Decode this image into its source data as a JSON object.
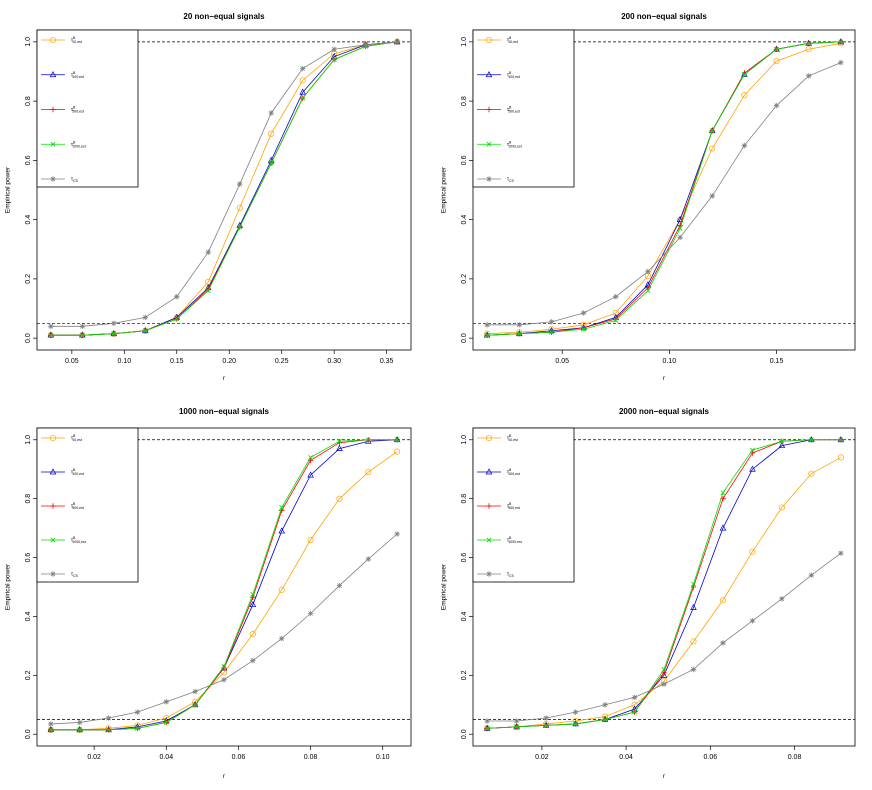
{
  "chart_data": [
    {
      "type": "line",
      "title": "20 non−equal signals",
      "xlabel": "r",
      "ylabel": "Empirical power",
      "xlim": [
        0.03,
        0.36
      ],
      "ylim": [
        0.0,
        1.0
      ],
      "xticks": [
        0.05,
        0.1,
        0.15,
        0.2,
        0.25,
        0.3,
        0.35
      ],
      "xtick_labels": [
        "0.05",
        "0.10",
        "0.15",
        "0.20",
        "0.25",
        "0.30",
        "0.35"
      ],
      "yticks": [
        0.0,
        0.2,
        0.4,
        0.6,
        0.8,
        1.0
      ],
      "ytick_labels": [
        "0.0",
        "0.2",
        "0.4",
        "0.6",
        "0.8",
        "1.0"
      ],
      "hlines": [
        0.05,
        1.0
      ],
      "x": [
        0.03,
        0.06,
        0.09,
        0.12,
        0.15,
        0.18,
        0.21,
        0.24,
        0.27,
        0.3,
        0.33,
        0.36
      ],
      "series": [
        {
          "name": "orange",
          "values": [
            0.01,
            0.01,
            0.015,
            0.025,
            0.07,
            0.19,
            0.44,
            0.69,
            0.87,
            0.96,
            0.99,
            1.0
          ]
        },
        {
          "name": "blue",
          "values": [
            0.01,
            0.01,
            0.015,
            0.025,
            0.07,
            0.17,
            0.38,
            0.6,
            0.83,
            0.95,
            0.99,
            1.0
          ]
        },
        {
          "name": "red",
          "values": [
            0.01,
            0.01,
            0.015,
            0.025,
            0.065,
            0.165,
            0.375,
            0.59,
            0.81,
            0.94,
            0.985,
            1.0
          ]
        },
        {
          "name": "green",
          "values": [
            0.01,
            0.01,
            0.015,
            0.025,
            0.065,
            0.16,
            0.375,
            0.59,
            0.81,
            0.94,
            0.985,
            1.0
          ]
        },
        {
          "name": "gray",
          "values": [
            0.04,
            0.04,
            0.05,
            0.07,
            0.14,
            0.29,
            0.52,
            0.76,
            0.91,
            0.975,
            0.99,
            1.0
          ]
        }
      ]
    },
    {
      "type": "line",
      "title": "200 non−equal signals",
      "xlabel": "r",
      "ylabel": "Empirical power",
      "xlim": [
        0.015,
        0.18
      ],
      "ylim": [
        0.0,
        1.0
      ],
      "xticks": [
        0.05,
        0.1,
        0.15
      ],
      "xtick_labels": [
        "0.05",
        "0.10",
        "0.15"
      ],
      "yticks": [
        0.0,
        0.2,
        0.4,
        0.6,
        0.8,
        1.0
      ],
      "ytick_labels": [
        "0.0",
        "0.2",
        "0.4",
        "0.6",
        "0.8",
        "1.0"
      ],
      "hlines": [
        0.05,
        1.0
      ],
      "x": [
        0.015,
        0.03,
        0.045,
        0.06,
        0.075,
        0.09,
        0.105,
        0.12,
        0.135,
        0.15,
        0.165,
        0.18
      ],
      "series": [
        {
          "name": "orange",
          "values": [
            0.015,
            0.02,
            0.03,
            0.045,
            0.085,
            0.21,
            0.4,
            0.64,
            0.82,
            0.935,
            0.975,
            0.995
          ]
        },
        {
          "name": "blue",
          "values": [
            0.01,
            0.015,
            0.025,
            0.035,
            0.07,
            0.18,
            0.4,
            0.7,
            0.89,
            0.975,
            0.995,
            1.0
          ]
        },
        {
          "name": "red",
          "values": [
            0.01,
            0.015,
            0.02,
            0.035,
            0.065,
            0.17,
            0.38,
            0.7,
            0.895,
            0.975,
            0.995,
            1.0
          ]
        },
        {
          "name": "green",
          "values": [
            0.01,
            0.015,
            0.02,
            0.03,
            0.06,
            0.16,
            0.37,
            0.7,
            0.89,
            0.975,
            0.995,
            1.0
          ]
        },
        {
          "name": "gray",
          "values": [
            0.045,
            0.045,
            0.055,
            0.085,
            0.14,
            0.225,
            0.34,
            0.48,
            0.65,
            0.785,
            0.885,
            0.93
          ]
        }
      ]
    },
    {
      "type": "line",
      "title": "1000 non−equal signals",
      "xlabel": "r",
      "ylabel": "Empirical power",
      "xlim": [
        0.008,
        0.104
      ],
      "ylim": [
        0.0,
        1.0
      ],
      "xticks": [
        0.02,
        0.04,
        0.06,
        0.08,
        0.1
      ],
      "xtick_labels": [
        "0.02",
        "0.04",
        "0.06",
        "0.08",
        "0.10"
      ],
      "yticks": [
        0.0,
        0.2,
        0.4,
        0.6,
        0.8,
        1.0
      ],
      "ytick_labels": [
        "0.0",
        "0.2",
        "0.4",
        "0.6",
        "0.8",
        "1.0"
      ],
      "hlines": [
        0.05,
        1.0
      ],
      "x": [
        0.008,
        0.016,
        0.024,
        0.032,
        0.04,
        0.048,
        0.056,
        0.064,
        0.072,
        0.08,
        0.088,
        0.096,
        0.104
      ],
      "series": [
        {
          "name": "orange",
          "values": [
            0.015,
            0.015,
            0.02,
            0.03,
            0.055,
            0.11,
            0.21,
            0.34,
            0.49,
            0.66,
            0.8,
            0.89,
            0.96
          ]
        },
        {
          "name": "blue",
          "values": [
            0.015,
            0.015,
            0.015,
            0.025,
            0.045,
            0.1,
            0.225,
            0.44,
            0.69,
            0.88,
            0.97,
            0.995,
            1.0
          ]
        },
        {
          "name": "red",
          "values": [
            0.015,
            0.015,
            0.015,
            0.02,
            0.04,
            0.1,
            0.225,
            0.465,
            0.76,
            0.93,
            0.99,
            1.0,
            1.0
          ]
        },
        {
          "name": "green",
          "values": [
            0.015,
            0.015,
            0.015,
            0.02,
            0.04,
            0.1,
            0.23,
            0.475,
            0.77,
            0.94,
            0.995,
            1.0,
            1.0
          ]
        },
        {
          "name": "gray",
          "values": [
            0.035,
            0.04,
            0.055,
            0.075,
            0.11,
            0.145,
            0.185,
            0.25,
            0.325,
            0.41,
            0.505,
            0.595,
            0.68
          ]
        }
      ]
    },
    {
      "type": "line",
      "title": "2000 non−equal signals",
      "xlabel": "r",
      "ylabel": "Empirical power",
      "xlim": [
        0.007,
        0.091
      ],
      "ylim": [
        0.0,
        1.0
      ],
      "xticks": [
        0.02,
        0.04,
        0.06,
        0.08
      ],
      "xtick_labels": [
        "0.02",
        "0.04",
        "0.06",
        "0.08"
      ],
      "yticks": [
        0.0,
        0.2,
        0.4,
        0.6,
        0.8,
        1.0
      ],
      "ytick_labels": [
        "0.0",
        "0.2",
        "0.4",
        "0.6",
        "0.8",
        "1.0"
      ],
      "hlines": [
        0.05,
        1.0
      ],
      "x": [
        0.007,
        0.014,
        0.021,
        0.028,
        0.035,
        0.042,
        0.049,
        0.056,
        0.063,
        0.07,
        0.077,
        0.084,
        0.091
      ],
      "series": [
        {
          "name": "orange",
          "values": [
            0.02,
            0.025,
            0.035,
            0.045,
            0.06,
            0.1,
            0.18,
            0.315,
            0.455,
            0.62,
            0.77,
            0.885,
            0.94
          ]
        },
        {
          "name": "blue",
          "values": [
            0.02,
            0.025,
            0.03,
            0.035,
            0.05,
            0.085,
            0.2,
            0.43,
            0.7,
            0.9,
            0.98,
            1.0,
            1.0
          ]
        },
        {
          "name": "red",
          "values": [
            0.02,
            0.025,
            0.03,
            0.035,
            0.05,
            0.075,
            0.21,
            0.5,
            0.8,
            0.955,
            0.995,
            1.0,
            1.0
          ]
        },
        {
          "name": "green",
          "values": [
            0.02,
            0.025,
            0.03,
            0.035,
            0.05,
            0.075,
            0.22,
            0.51,
            0.82,
            0.965,
            0.995,
            1.0,
            1.0
          ]
        },
        {
          "name": "gray",
          "values": [
            0.045,
            0.045,
            0.055,
            0.075,
            0.1,
            0.125,
            0.17,
            0.22,
            0.31,
            0.385,
            0.46,
            0.54,
            0.615
          ]
        }
      ]
    }
  ],
  "legend": {
    "items": [
      {
        "symbol": "τ",
        "sup": "B",
        "sub": "10,est",
        "color": "#FFA500",
        "marker": "circle"
      },
      {
        "symbol": "τ",
        "sup": "B",
        "sub": "100,est",
        "color": "#0000CD",
        "marker": "triangle"
      },
      {
        "symbol": "τ",
        "sup": "B",
        "sub": "500,est",
        "color": "#FF0000",
        "marker": "plus"
      },
      {
        "symbol": "τ",
        "sup": "B",
        "sub": "1000,est",
        "color": "#00DD00",
        "marker": "x"
      },
      {
        "symbol": "τ",
        "sup": "",
        "sub": "CS",
        "color": "#808080",
        "marker": "star"
      }
    ]
  },
  "colors": {
    "orange": "#FFA500",
    "blue": "#0000CD",
    "red": "#FF0000",
    "green": "#00DD00",
    "gray": "#808080"
  }
}
